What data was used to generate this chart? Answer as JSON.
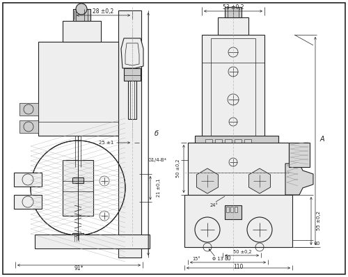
{
  "background_color": "#ffffff",
  "line_color": "#222222",
  "gray_fill": "#d8d8d8",
  "light_fill": "#eeeeee",
  "mid_fill": "#cccccc",
  "dark_fill": "#aaaaaa",
  "hatch_color": "#999999",
  "annotations": {
    "dim_28": "28 ±0,2",
    "dim_53": "53 ±0,2",
    "dim_25": "25 ±1",
    "dim_21": "21 ±0,1",
    "dim_91": "91*",
    "dim_b": "б",
    "dim_G": "G1/4-B*",
    "dim_50a": "50 ±0,2",
    "dim_50b": "50 ±0,2",
    "dim_55": "55 ±0,2",
    "dim_80": "80",
    "dim_110": "110",
    "dim_A": "A",
    "dim_24": "24°",
    "dim_15": "15°",
    "dim_phi13": "Φ 13",
    "dim_10": "10"
  },
  "fig_width": 5.0,
  "fig_height": 3.98,
  "dpi": 100
}
